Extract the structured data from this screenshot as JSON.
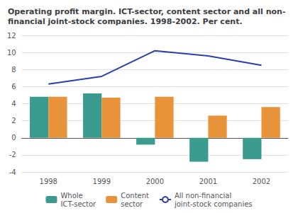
{
  "chart_data": {
    "type": "bar",
    "title": "Operating profit margin. ICT-sector, content sector and all non-\nfinancial joint-stock companies. 1998-2002. Per cent.",
    "categories": [
      "1998",
      "1999",
      "2000",
      "2001",
      "2002"
    ],
    "series": [
      {
        "name": "Whole\nICT-sector",
        "type": "bar",
        "color": "#3A9B8E",
        "values": [
          4.8,
          5.2,
          -0.8,
          -2.8,
          -2.5
        ]
      },
      {
        "name": "Content\nsector",
        "type": "bar",
        "color": "#E8923A",
        "values": [
          4.8,
          4.7,
          4.8,
          2.6,
          3.6
        ]
      },
      {
        "name": "All non-financial\njoint-stock companies",
        "type": "line",
        "color": "#2B3FAA",
        "values": [
          6.3,
          7.2,
          10.2,
          9.6,
          8.5
        ]
      }
    ],
    "ylim": [
      -4,
      12
    ],
    "yticks": [
      -4,
      -2,
      0,
      2,
      4,
      6,
      8,
      10,
      12
    ],
    "grid": true,
    "legend": "bottom"
  }
}
